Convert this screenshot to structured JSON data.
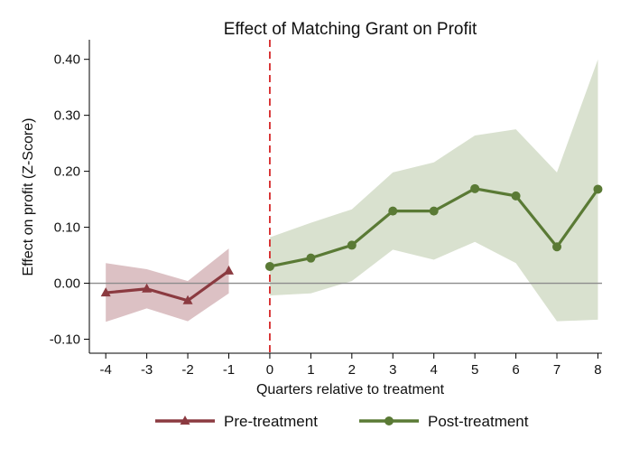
{
  "chart_data": {
    "type": "line",
    "title": "Effect of Matching Grant on Profit",
    "xlabel": "Quarters relative to treatment",
    "ylabel": "Effect on profit (Z-Score)",
    "x_ticks": [
      -4,
      -3,
      -2,
      -1,
      0,
      1,
      2,
      3,
      4,
      5,
      6,
      7,
      8
    ],
    "y_ticks": [
      -0.1,
      0.0,
      0.1,
      0.2,
      0.3,
      0.4
    ],
    "y_tick_labels": [
      "-0.10",
      "0.00",
      "0.10",
      "0.20",
      "0.30",
      "0.40"
    ],
    "xlim": [
      -4.4,
      8.1
    ],
    "ylim": [
      -0.125,
      0.435
    ],
    "zero_line": 0,
    "treatment_line_x": 0,
    "grid": false,
    "legend_position": "bottom",
    "series": [
      {
        "name": "Pre-treatment",
        "color": "#8b3a40",
        "band_color": "#dcc1c4",
        "marker": "triangle",
        "x": [
          -4,
          -3,
          -2,
          -1
        ],
        "y": [
          -0.017,
          -0.01,
          -0.031,
          0.022
        ],
        "ci_low": [
          -0.069,
          -0.045,
          -0.068,
          -0.018
        ],
        "ci_high": [
          0.036,
          0.025,
          0.004,
          0.062
        ]
      },
      {
        "name": "Post-treatment",
        "color": "#5a7a35",
        "band_color": "#d9e1cf",
        "marker": "circle",
        "x": [
          0,
          1,
          2,
          3,
          4,
          5,
          6,
          7,
          8
        ],
        "y": [
          0.03,
          0.045,
          0.068,
          0.129,
          0.129,
          0.169,
          0.156,
          0.065,
          0.168
        ],
        "ci_low": [
          -0.022,
          -0.018,
          0.004,
          0.06,
          0.042,
          0.074,
          0.036,
          -0.068,
          -0.065
        ],
        "ci_high": [
          0.082,
          0.108,
          0.132,
          0.198,
          0.216,
          0.264,
          0.275,
          0.198,
          0.4
        ]
      }
    ]
  }
}
